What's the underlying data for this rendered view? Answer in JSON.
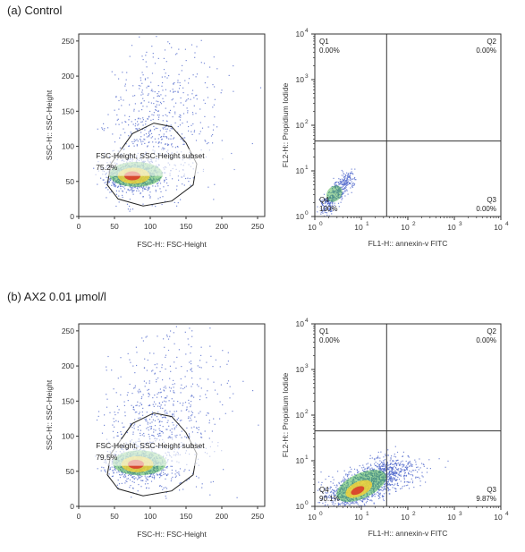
{
  "panels": [
    {
      "label": "(a) Control"
    },
    {
      "label": "(b) AX2 0.01 μmol/l"
    }
  ],
  "chart_data": [
    {
      "type": "scatter",
      "panel": "(a)",
      "xlabel": "FSC-H:: FSC-Height",
      "ylabel": "SSC-H:: SSC-Height",
      "xlim": [
        0,
        260
      ],
      "ylim": [
        0,
        260
      ],
      "xticks": [
        "0",
        "50",
        "100",
        "150",
        "200",
        "250"
      ],
      "yticks": [
        "0",
        "50",
        "100",
        "150",
        "200",
        "250"
      ],
      "gate_label": "FSC-Height, SSC-Height subset",
      "gate_value": "75.2%",
      "density_center": [
        75,
        58
      ],
      "colors": {
        "points": "#4a63c9",
        "core_red": "#d8322a",
        "core_yellow": "#f2d23a",
        "core_green": "#47b24a"
      }
    },
    {
      "type": "scatter",
      "panel": "(a)",
      "scale": "log",
      "xlabel": "FL1-H:: annexin-v FITC",
      "ylabel": "FL2-H:: Propidium Iodide",
      "xlim": [
        1,
        10000
      ],
      "ylim": [
        1,
        10000
      ],
      "xticks": [
        "10",
        "10",
        "10",
        "10",
        "10"
      ],
      "xtick_exp": [
        "0",
        "1",
        "2",
        "3",
        "4"
      ],
      "yticks": [
        "10",
        "10",
        "10",
        "10",
        "10"
      ],
      "ytick_exp": [
        "0",
        "1",
        "2",
        "3",
        "4"
      ],
      "quadrants": [
        {
          "name": "Q1",
          "value": "0.00%"
        },
        {
          "name": "Q2",
          "value": "0.00%"
        },
        {
          "name": "Q3",
          "value": "0.00%"
        },
        {
          "name": "Q4",
          "value": "100%"
        }
      ],
      "gate_x": 35,
      "gate_y": 45
    },
    {
      "type": "scatter",
      "panel": "(b)",
      "xlabel": "FSC-H:: FSC-Height",
      "ylabel": "SSC-H:: SSC-Height",
      "xlim": [
        0,
        260
      ],
      "ylim": [
        0,
        260
      ],
      "xticks": [
        "0",
        "50",
        "100",
        "150",
        "200",
        "250"
      ],
      "yticks": [
        "0",
        "50",
        "100",
        "150",
        "200",
        "250"
      ],
      "gate_label": "FSC-Height, SSC-Height subset",
      "gate_value": "79.5%",
      "density_center": [
        80,
        60
      ]
    },
    {
      "type": "scatter",
      "panel": "(b)",
      "scale": "log",
      "xlabel": "FL1-H:: annexin-v FITC",
      "ylabel": "FL2-H:: Propidium Iodide",
      "xlim": [
        1,
        10000
      ],
      "ylim": [
        1,
        10000
      ],
      "xticks": [
        "10",
        "10",
        "10",
        "10",
        "10"
      ],
      "xtick_exp": [
        "0",
        "1",
        "2",
        "3",
        "4"
      ],
      "yticks": [
        "10",
        "10",
        "10",
        "10",
        "10"
      ],
      "ytick_exp": [
        "0",
        "1",
        "2",
        "3",
        "4"
      ],
      "quadrants": [
        {
          "name": "Q1",
          "value": "0.00%"
        },
        {
          "name": "Q2",
          "value": "0.00%"
        },
        {
          "name": "Q3",
          "value": "9.87%"
        },
        {
          "name": "Q4",
          "value": "90.1%"
        }
      ],
      "gate_x": 35,
      "gate_y": 45
    }
  ]
}
